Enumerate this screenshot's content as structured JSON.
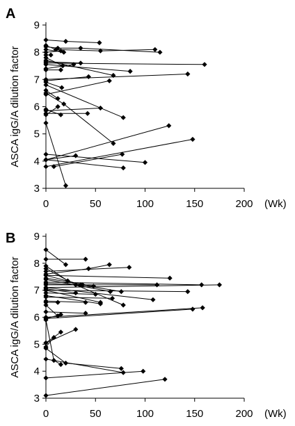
{
  "chart_data": [
    {
      "type": "line",
      "panel_label": "A",
      "ylabel": "ASCA igG/A dilution factor",
      "x_unit": "(Wk)",
      "xlim": [
        0,
        200
      ],
      "ylim": [
        3,
        9
      ],
      "xticks": [
        "0",
        "50",
        "100",
        "150",
        "200"
      ],
      "yticks": [
        "3",
        "4",
        "5",
        "6",
        "7",
        "8",
        "9"
      ],
      "grid": false,
      "marker": "diamond",
      "series": [
        {
          "x": [
            0,
            20,
            54
          ],
          "y": [
            8.45,
            8.4,
            8.35
          ]
        },
        {
          "x": [
            0,
            10,
            55,
            110
          ],
          "y": [
            8.25,
            8.1,
            8.05,
            8.1
          ]
        },
        {
          "x": [
            0,
            12,
            35,
            115
          ],
          "y": [
            8.2,
            8.15,
            8.15,
            8.0
          ]
        },
        {
          "x": [
            0,
            15
          ],
          "y": [
            8.0,
            8.05
          ]
        },
        {
          "x": [
            0,
            18
          ],
          "y": [
            8.1,
            8.0
          ]
        },
        {
          "x": [
            0,
            5
          ],
          "y": [
            7.9,
            7.9
          ]
        },
        {
          "x": [
            0,
            17
          ],
          "y": [
            7.8,
            7.5
          ]
        },
        {
          "x": [
            0,
            160
          ],
          "y": [
            7.6,
            7.55
          ]
        },
        {
          "x": [
            0,
            35
          ],
          "y": [
            7.65,
            7.6
          ]
        },
        {
          "x": [
            0,
            28
          ],
          "y": [
            7.4,
            7.55
          ]
        },
        {
          "x": [
            0,
            68
          ],
          "y": [
            7.7,
            7.15
          ]
        },
        {
          "x": [
            0,
            85
          ],
          "y": [
            7.55,
            7.3
          ]
        },
        {
          "x": [
            0,
            15
          ],
          "y": [
            7.35,
            7.35
          ]
        },
        {
          "x": [
            0,
            143
          ],
          "y": [
            7.0,
            7.2
          ]
        },
        {
          "x": [
            0,
            43
          ],
          "y": [
            6.95,
            7.1
          ]
        },
        {
          "x": [
            0,
            64
          ],
          "y": [
            6.45,
            6.95
          ]
        },
        {
          "x": [
            0,
            16
          ],
          "y": [
            6.9,
            6.7
          ]
        },
        {
          "x": [
            0,
            12
          ],
          "y": [
            6.6,
            6.3
          ]
        },
        {
          "x": [
            0,
            78
          ],
          "y": [
            6.8,
            5.6
          ]
        },
        {
          "x": [
            0,
            55
          ],
          "y": [
            5.85,
            5.95
          ]
        },
        {
          "x": [
            0,
            18,
            68
          ],
          "y": [
            6.5,
            6.1,
            4.65
          ]
        },
        {
          "x": [
            0,
            12
          ],
          "y": [
            5.7,
            6.0
          ]
        },
        {
          "x": [
            0,
            42
          ],
          "y": [
            5.75,
            5.75
          ]
        },
        {
          "x": [
            0,
            15
          ],
          "y": [
            5.9,
            5.7
          ]
        },
        {
          "x": [
            0,
            20
          ],
          "y": [
            5.4,
            3.1
          ]
        },
        {
          "x": [
            0,
            124
          ],
          "y": [
            4.05,
            5.3
          ]
        },
        {
          "x": [
            0,
            148
          ],
          "y": [
            3.8,
            4.8
          ]
        },
        {
          "x": [
            0,
            100
          ],
          "y": [
            4.25,
            3.95
          ]
        },
        {
          "x": [
            0,
            78
          ],
          "y": [
            4.05,
            3.75
          ]
        },
        {
          "x": [
            0,
            30
          ],
          "y": [
            4.05,
            4.2
          ]
        },
        {
          "x": [
            8,
            77
          ],
          "y": [
            3.8,
            4.25
          ]
        }
      ]
    },
    {
      "type": "line",
      "panel_label": "B",
      "ylabel": "ASCA igG/A dilution factor",
      "x_unit": "(Wk)",
      "xlim": [
        0,
        200
      ],
      "ylim": [
        3,
        9
      ],
      "xticks": [
        "0",
        "50",
        "100",
        "150",
        "200"
      ],
      "yticks": [
        "3",
        "4",
        "5",
        "6",
        "7",
        "8",
        "9"
      ],
      "grid": false,
      "marker": "diamond",
      "series": [
        {
          "x": [
            0,
            40
          ],
          "y": [
            8.15,
            8.15
          ]
        },
        {
          "x": [
            0,
            20
          ],
          "y": [
            8.5,
            7.95
          ]
        },
        {
          "x": [
            0,
            43,
            64
          ],
          "y": [
            7.6,
            7.8,
            7.95
          ]
        },
        {
          "x": [
            0,
            84
          ],
          "y": [
            7.7,
            7.85
          ]
        },
        {
          "x": [
            0,
            22
          ],
          "y": [
            7.9,
            7.35
          ]
        },
        {
          "x": [
            0,
            30,
            78
          ],
          "y": [
            7.8,
            7.2,
            6.45
          ]
        },
        {
          "x": [
            0,
            125
          ],
          "y": [
            7.55,
            7.45
          ]
        },
        {
          "x": [
            0,
            37
          ],
          "y": [
            7.55,
            7.2
          ]
        },
        {
          "x": [
            0,
            175
          ],
          "y": [
            7.1,
            7.2
          ]
        },
        {
          "x": [
            0,
            157
          ],
          "y": [
            7.3,
            7.2
          ]
        },
        {
          "x": [
            0,
            112
          ],
          "y": [
            7.2,
            7.2
          ]
        },
        {
          "x": [
            0,
            143
          ],
          "y": [
            7.0,
            6.95
          ]
        },
        {
          "x": [
            0,
            65
          ],
          "y": [
            7.4,
            6.95
          ]
        },
        {
          "x": [
            0,
            35,
            76
          ],
          "y": [
            7.25,
            7.2,
            6.95
          ]
        },
        {
          "x": [
            0,
            48
          ],
          "y": [
            7.45,
            7.15
          ]
        },
        {
          "x": [
            0,
            108
          ],
          "y": [
            7.1,
            6.65
          ]
        },
        {
          "x": [
            0,
            50
          ],
          "y": [
            6.9,
            6.85
          ]
        },
        {
          "x": [
            0,
            30
          ],
          "y": [
            7.05,
            6.9
          ]
        },
        {
          "x": [
            0,
            55
          ],
          "y": [
            7.0,
            6.55
          ]
        },
        {
          "x": [
            0,
            55
          ],
          "y": [
            6.8,
            6.5
          ]
        },
        {
          "x": [
            0,
            67
          ],
          "y": [
            6.75,
            6.7
          ]
        },
        {
          "x": [
            0,
            12
          ],
          "y": [
            6.55,
            6.55
          ]
        },
        {
          "x": [
            0,
            40
          ],
          "y": [
            6.6,
            6.55
          ]
        },
        {
          "x": [
            0,
            158
          ],
          "y": [
            6.0,
            6.35
          ]
        },
        {
          "x": [
            0,
            148
          ],
          "y": [
            5.95,
            6.3
          ]
        },
        {
          "x": [
            0,
            40
          ],
          "y": [
            6.2,
            6.15
          ]
        },
        {
          "x": [
            0,
            12
          ],
          "y": [
            6.45,
            6.05
          ]
        },
        {
          "x": [
            0,
            15
          ],
          "y": [
            5.95,
            6.1
          ]
        },
        {
          "x": [
            0,
            15
          ],
          "y": [
            5.05,
            5.45
          ]
        },
        {
          "x": [
            0,
            30
          ],
          "y": [
            5.05,
            5.55
          ]
        },
        {
          "x": [
            0,
            8
          ],
          "y": [
            4.9,
            5.25
          ]
        },
        {
          "x": [
            0,
            8,
            15
          ],
          "y": [
            5.9,
            4.4,
            4.25
          ]
        },
        {
          "x": [
            0,
            20,
            76
          ],
          "y": [
            4.85,
            4.3,
            4.1
          ]
        },
        {
          "x": [
            0,
            78
          ],
          "y": [
            4.45,
            3.95
          ]
        },
        {
          "x": [
            0,
            98
          ],
          "y": [
            3.75,
            4.0
          ]
        },
        {
          "x": [
            0,
            120
          ],
          "y": [
            3.1,
            3.7
          ]
        }
      ]
    }
  ]
}
